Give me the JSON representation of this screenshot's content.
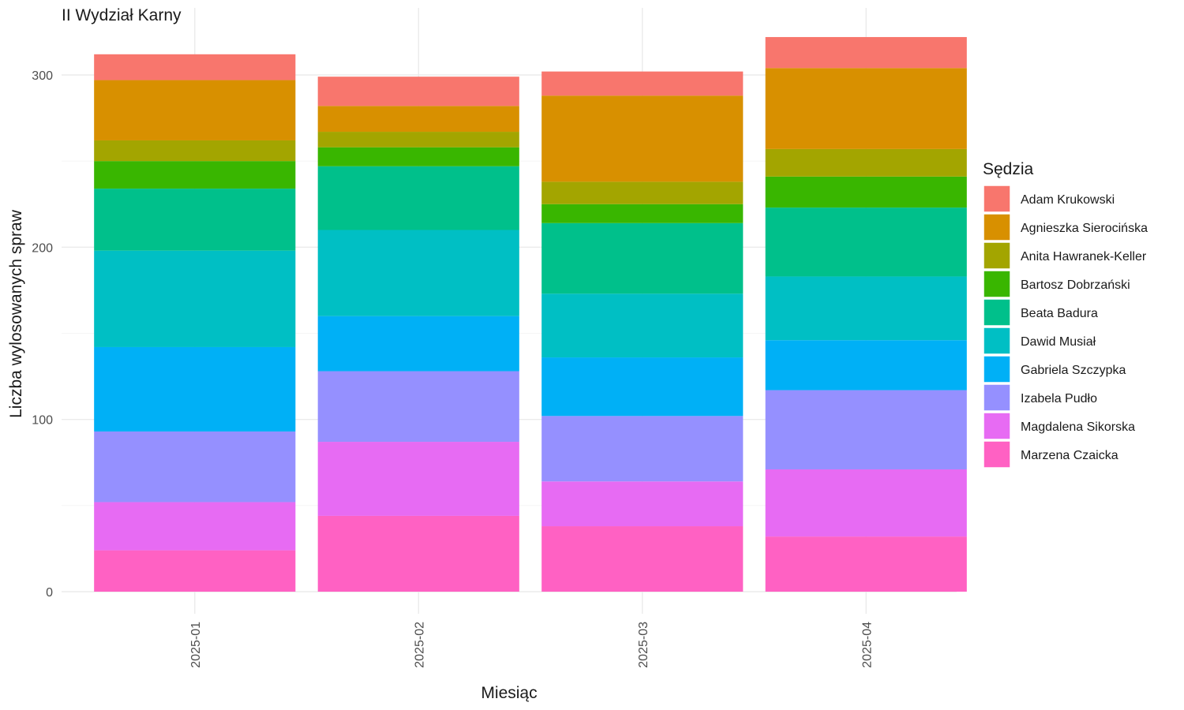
{
  "chart_data": {
    "type": "bar",
    "stacked": true,
    "title": "II Wydział Karny",
    "xlabel": "Miesiąc",
    "ylabel": "Liczba wylosowanych spraw",
    "ylim": [
      0,
      330
    ],
    "yticks": [
      0,
      100,
      200,
      300
    ],
    "grid": true,
    "legend_title": "Sędzia",
    "legend_position": "right",
    "categories": [
      "2025-01",
      "2025-02",
      "2025-03",
      "2025-04"
    ],
    "series": [
      {
        "name": "Marzena Czaicka",
        "color": "#FF61C3",
        "values": [
          24,
          44,
          38,
          32
        ]
      },
      {
        "name": "Magdalena Sikorska",
        "color": "#E76BF3",
        "values": [
          28,
          43,
          26,
          39
        ]
      },
      {
        "name": "Izabela Pudło",
        "color": "#9590FF",
        "values": [
          41,
          41,
          38,
          46
        ]
      },
      {
        "name": "Gabriela Szczypka",
        "color": "#00B0F6",
        "values": [
          49,
          32,
          34,
          29
        ]
      },
      {
        "name": "Dawid Musiał",
        "color": "#00BFC4",
        "values": [
          56,
          50,
          37,
          37
        ]
      },
      {
        "name": "Beata Badura",
        "color": "#00C08B",
        "values": [
          36,
          37,
          41,
          40
        ]
      },
      {
        "name": "Bartosz Dobrzański",
        "color": "#39B600",
        "values": [
          16,
          11,
          11,
          18
        ]
      },
      {
        "name": "Anita Hawranek-Keller",
        "color": "#A3A500",
        "values": [
          12,
          9,
          13,
          16
        ]
      },
      {
        "name": "Agnieszka Sierocińska",
        "color": "#D89000",
        "values": [
          35,
          15,
          50,
          47
        ]
      },
      {
        "name": "Adam Krukowski",
        "color": "#F8766D",
        "values": [
          15,
          17,
          14,
          18
        ]
      }
    ],
    "legend_order": [
      "Adam Krukowski",
      "Agnieszka Sierocińska",
      "Anita Hawranek-Keller",
      "Bartosz Dobrzański",
      "Beata Badura",
      "Dawid Musiał",
      "Gabriela Szczypka",
      "Izabela Pudło",
      "Magdalena Sikorska",
      "Marzena Czaicka"
    ]
  }
}
